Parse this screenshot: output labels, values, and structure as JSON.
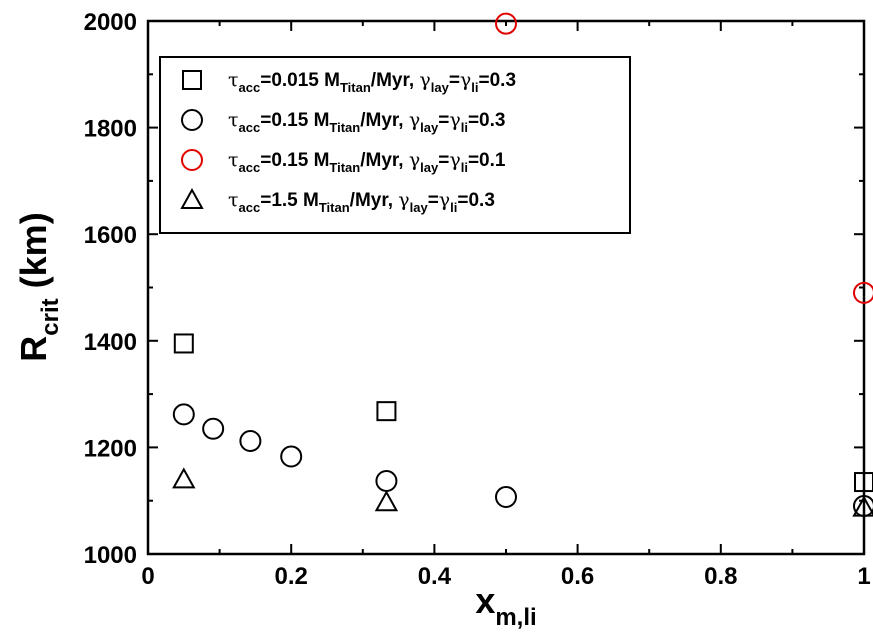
{
  "chart_data": {
    "type": "scatter",
    "xlabel": {
      "main": "x",
      "sub": "m,li"
    },
    "ylabel": {
      "main": "R",
      "sub": "crit",
      "suffix": " (km)"
    },
    "xlim": [
      0,
      1
    ],
    "ylim": [
      1000,
      2000
    ],
    "xticks": [
      0,
      0.2,
      0.4,
      0.6,
      0.8,
      1
    ],
    "xtick_labels": [
      "0",
      "0.2",
      "0.4",
      "0.6",
      "0.8",
      "1"
    ],
    "yticks": [
      1000,
      1200,
      1400,
      1600,
      1800,
      2000
    ],
    "ytick_labels": [
      "1000",
      "1200",
      "1400",
      "1600",
      "1800",
      "2000"
    ],
    "grid": false,
    "legend_position": "top-left",
    "series": [
      {
        "marker": "square",
        "color": "#000000",
        "label": {
          "tau": "τ",
          "acc": "acc",
          "a": "=0.015 M",
          "titan": "Titan",
          "b": "/Myr, ",
          "g1": "γ",
          "lay": "lay",
          "eq": "=",
          "g2": "γ",
          "li": "li",
          "val": "=0.3"
        },
        "points": [
          [
            0.05,
            1395
          ],
          [
            0.333,
            1268
          ],
          [
            1.0,
            1135
          ]
        ]
      },
      {
        "marker": "circle",
        "color": "#000000",
        "label": {
          "tau": "τ",
          "acc": "acc",
          "a": "=0.15 M",
          "titan": "Titan",
          "b": "/Myr, ",
          "g1": "γ",
          "lay": "lay",
          "eq": "=",
          "g2": "γ",
          "li": "li",
          "val": "=0.3"
        },
        "points": [
          [
            0.05,
            1262
          ],
          [
            0.091,
            1235
          ],
          [
            0.143,
            1212
          ],
          [
            0.2,
            1183
          ],
          [
            0.333,
            1137
          ],
          [
            0.5,
            1107
          ],
          [
            1.0,
            1090
          ]
        ]
      },
      {
        "marker": "circle",
        "color": "#e00000",
        "label": {
          "tau": "τ",
          "acc": "acc",
          "a": "=0.15 M",
          "titan": "Titan",
          "b": "/Myr, ",
          "g1": "γ",
          "lay": "lay",
          "eq": "=",
          "g2": "γ",
          "li": "li",
          "val": "=0.1"
        },
        "points": [
          [
            0.5,
            1995
          ],
          [
            1.0,
            1490
          ]
        ]
      },
      {
        "marker": "triangle",
        "color": "#000000",
        "label": {
          "tau": "τ",
          "acc": "acc",
          "a": "=1.5 M",
          "titan": "Titan",
          "b": "/Myr, ",
          "g1": "γ",
          "lay": "lay",
          "eq": "=",
          "g2": "γ",
          "li": "li",
          "val": "=0.3"
        },
        "points": [
          [
            0.05,
            1140
          ],
          [
            0.333,
            1097
          ],
          [
            1.0,
            1087
          ]
        ]
      }
    ]
  }
}
